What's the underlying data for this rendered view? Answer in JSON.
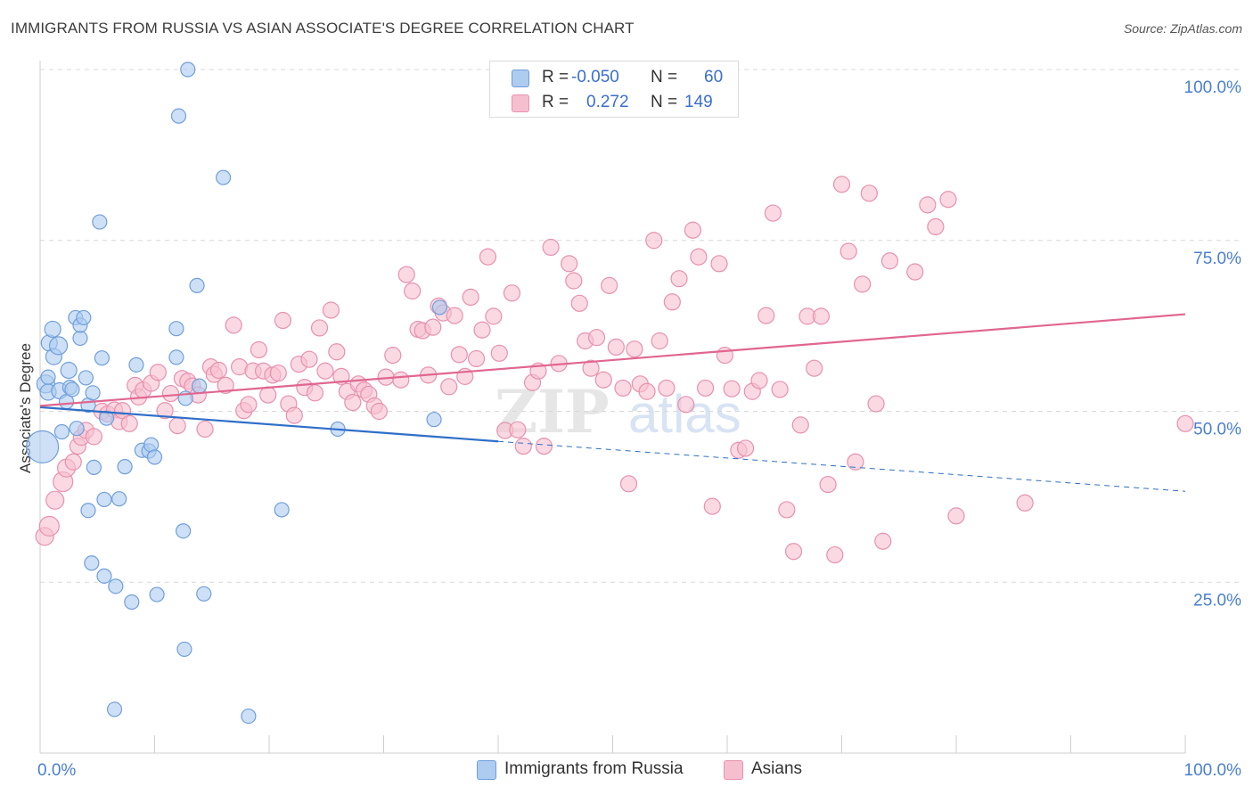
{
  "title": "IMMIGRANTS FROM RUSSIA VS ASIAN ASSOCIATE'S DEGREE CORRELATION CHART",
  "source": "Source: ZipAtlas.com",
  "legend": {
    "rows": [
      {
        "r_label": "R =",
        "r_value": "-0.050",
        "n_label": "N =",
        "n_value": "60"
      },
      {
        "r_label": "R =",
        "r_value": "0.272",
        "n_label": "N =",
        "n_value": "149"
      }
    ]
  },
  "bottom_legend": [
    "Immigrants from Russia",
    "Asians"
  ],
  "colors": {
    "blue_fill": "#aecbf0",
    "blue_stroke": "#6f9fdc",
    "blue_line": "#2f6fc7",
    "pink_fill": "#f6bfd0",
    "pink_stroke": "#e891ae",
    "pink_line": "#e06690",
    "tick_label": "#4a7fd0",
    "grid": "#d8d8d8"
  },
  "chart_data": {
    "type": "scatter",
    "title": "IMMIGRANTS FROM RUSSIA VS ASIAN ASSOCIATE'S DEGREE CORRELATION CHART",
    "xlabel": "",
    "ylabel": "Associate's Degree",
    "xlim": [
      0,
      100
    ],
    "ylim": [
      0,
      100
    ],
    "x_tick_labels": [
      "0.0%",
      "100.0%"
    ],
    "y_tick_labels": [
      "25.0%",
      "50.0%",
      "75.0%",
      "100.0%"
    ],
    "y_ticks": [
      25,
      50,
      75,
      100
    ],
    "grid": "horizontal dashed",
    "watermark": "ZIPatlas",
    "series": [
      {
        "name": "Immigrants from Russia",
        "r": -0.05,
        "n": 60,
        "trend": {
          "x0": 0,
          "y0": 50.6,
          "x1": 40,
          "y1": 45.6,
          "dashed_to": 100,
          "y_end": 38.3
        },
        "points": [
          [
            0.2,
            44.8,
            18
          ],
          [
            0.5,
            54.0,
            10
          ],
          [
            0.7,
            52.8,
            9
          ],
          [
            0.7,
            55.0,
            8
          ],
          [
            0.8,
            60.0,
            9
          ],
          [
            1.1,
            62.0,
            9
          ],
          [
            1.2,
            58.0,
            9
          ],
          [
            1.6,
            59.6,
            10
          ],
          [
            1.7,
            53.0,
            9
          ],
          [
            1.9,
            47.0,
            8
          ],
          [
            2.3,
            51.4,
            8
          ],
          [
            2.5,
            56.0,
            9
          ],
          [
            2.6,
            53.5,
            8
          ],
          [
            2.8,
            53.2,
            8
          ],
          [
            3.1,
            63.7,
            8
          ],
          [
            3.2,
            47.5,
            8
          ],
          [
            3.5,
            60.7,
            8
          ],
          [
            3.5,
            62.6,
            8
          ],
          [
            3.8,
            63.7,
            8
          ],
          [
            4.0,
            54.9,
            8
          ],
          [
            4.2,
            35.5,
            8
          ],
          [
            4.2,
            50.9,
            8
          ],
          [
            4.5,
            27.8,
            8
          ],
          [
            4.6,
            52.7,
            8
          ],
          [
            4.7,
            41.8,
            8
          ],
          [
            5.2,
            77.7,
            8
          ],
          [
            5.4,
            57.8,
            8
          ],
          [
            5.6,
            25.9,
            8
          ],
          [
            5.6,
            37.1,
            8
          ],
          [
            5.8,
            49.0,
            8
          ],
          [
            6.5,
            6.4,
            8
          ],
          [
            6.6,
            24.4,
            8
          ],
          [
            6.9,
            37.2,
            8
          ],
          [
            7.4,
            41.9,
            8
          ],
          [
            8.0,
            22.1,
            8
          ],
          [
            8.4,
            56.8,
            8
          ],
          [
            8.9,
            44.3,
            8
          ],
          [
            9.5,
            44.2,
            8
          ],
          [
            9.7,
            45.1,
            8
          ],
          [
            10.0,
            43.3,
            8
          ],
          [
            10.2,
            23.2,
            8
          ],
          [
            11.9,
            62.1,
            8
          ],
          [
            11.9,
            57.9,
            8
          ],
          [
            12.1,
            93.2,
            8
          ],
          [
            12.5,
            32.5,
            8
          ],
          [
            12.6,
            15.2,
            8
          ],
          [
            12.7,
            51.9,
            8
          ],
          [
            12.9,
            100.0,
            8
          ],
          [
            13.7,
            68.4,
            8
          ],
          [
            13.9,
            53.7,
            8
          ],
          [
            14.3,
            23.3,
            8
          ],
          [
            16.0,
            84.2,
            8
          ],
          [
            18.2,
            5.4,
            8
          ],
          [
            21.1,
            35.6,
            8
          ],
          [
            34.9,
            65.2,
            8
          ],
          [
            34.4,
            48.8,
            8
          ],
          [
            26.0,
            47.4,
            8
          ]
        ]
      },
      {
        "name": "Asians",
        "r": 0.272,
        "n": 149,
        "trend": {
          "x0": 0,
          "y0": 50.8,
          "x1": 100,
          "y1": 64.2
        },
        "points": [
          [
            0.4,
            31.7,
            10
          ],
          [
            0.8,
            33.2,
            11
          ],
          [
            1.3,
            37.0,
            10
          ],
          [
            2.0,
            39.7,
            11
          ],
          [
            2.3,
            41.7,
            10
          ],
          [
            2.9,
            42.6,
            9
          ],
          [
            3.3,
            44.9,
            9
          ],
          [
            3.6,
            46.2,
            9
          ],
          [
            4.0,
            47.2,
            9
          ],
          [
            4.7,
            46.3,
            9
          ],
          [
            5.4,
            50.0,
            9
          ],
          [
            5.9,
            49.6,
            9
          ],
          [
            6.5,
            50.2,
            9
          ],
          [
            6.9,
            48.5,
            9
          ],
          [
            7.2,
            50.1,
            9
          ],
          [
            7.8,
            48.2,
            9
          ],
          [
            8.3,
            53.8,
            9
          ],
          [
            8.6,
            52.1,
            9
          ],
          [
            9.0,
            53.1,
            9
          ],
          [
            9.7,
            54.1,
            9
          ],
          [
            10.3,
            55.7,
            9
          ],
          [
            10.9,
            50.1,
            9
          ],
          [
            11.4,
            52.6,
            9
          ],
          [
            12.0,
            47.9,
            9
          ],
          [
            12.4,
            54.8,
            9
          ],
          [
            12.9,
            54.4,
            9
          ],
          [
            13.3,
            53.7,
            9
          ],
          [
            13.8,
            52.4,
            9
          ],
          [
            14.4,
            47.4,
            9
          ],
          [
            14.9,
            56.5,
            9
          ],
          [
            15.2,
            55.4,
            9
          ],
          [
            15.6,
            56.0,
            9
          ],
          [
            16.2,
            53.8,
            9
          ],
          [
            16.9,
            62.6,
            9
          ],
          [
            17.4,
            56.5,
            9
          ],
          [
            17.8,
            50.1,
            9
          ],
          [
            18.2,
            51.0,
            9
          ],
          [
            18.6,
            55.9,
            9
          ],
          [
            19.1,
            59.0,
            9
          ],
          [
            19.5,
            55.9,
            9
          ],
          [
            19.9,
            52.4,
            9
          ],
          [
            20.3,
            55.3,
            9
          ],
          [
            20.8,
            55.6,
            9
          ],
          [
            21.2,
            63.3,
            9
          ],
          [
            21.7,
            51.1,
            9
          ],
          [
            22.2,
            49.4,
            9
          ],
          [
            22.6,
            56.9,
            9
          ],
          [
            23.1,
            53.5,
            9
          ],
          [
            23.5,
            57.6,
            9
          ],
          [
            24.0,
            52.7,
            9
          ],
          [
            24.4,
            62.2,
            9
          ],
          [
            24.9,
            55.9,
            9
          ],
          [
            25.4,
            64.8,
            9
          ],
          [
            25.9,
            58.7,
            9
          ],
          [
            26.3,
            55.1,
            9
          ],
          [
            26.8,
            52.9,
            9
          ],
          [
            27.3,
            51.3,
            9
          ],
          [
            27.8,
            54.0,
            9
          ],
          [
            28.3,
            53.1,
            9
          ],
          [
            28.7,
            52.5,
            9
          ],
          [
            29.2,
            50.8,
            9
          ],
          [
            29.6,
            50.0,
            9
          ],
          [
            30.2,
            55.0,
            9
          ],
          [
            30.8,
            58.2,
            9
          ],
          [
            31.5,
            54.6,
            9
          ],
          [
            32.0,
            70.0,
            9
          ],
          [
            32.5,
            67.6,
            9
          ],
          [
            33.0,
            62.0,
            9
          ],
          [
            33.4,
            61.8,
            9
          ],
          [
            33.9,
            55.3,
            9
          ],
          [
            34.3,
            62.3,
            9
          ],
          [
            34.8,
            65.4,
            9
          ],
          [
            35.2,
            64.4,
            9
          ],
          [
            35.7,
            53.6,
            9
          ],
          [
            36.2,
            64.0,
            9
          ],
          [
            36.6,
            58.3,
            9
          ],
          [
            37.1,
            55.1,
            9
          ],
          [
            37.6,
            66.7,
            9
          ],
          [
            38.1,
            57.7,
            9
          ],
          [
            38.6,
            61.9,
            9
          ],
          [
            39.1,
            72.6,
            9
          ],
          [
            39.6,
            63.9,
            9
          ],
          [
            40.1,
            58.5,
            9
          ],
          [
            40.6,
            47.2,
            9
          ],
          [
            41.2,
            67.3,
            9
          ],
          [
            41.7,
            47.3,
            9
          ],
          [
            42.2,
            44.9,
            9
          ],
          [
            43.0,
            54.2,
            9
          ],
          [
            43.5,
            55.9,
            9
          ],
          [
            44.0,
            44.9,
            9
          ],
          [
            44.6,
            74.0,
            9
          ],
          [
            45.3,
            57.0,
            9
          ],
          [
            46.2,
            71.6,
            9
          ],
          [
            46.6,
            69.1,
            9
          ],
          [
            47.1,
            65.8,
            9
          ],
          [
            47.6,
            60.3,
            9
          ],
          [
            48.1,
            56.3,
            9
          ],
          [
            48.6,
            60.8,
            9
          ],
          [
            49.2,
            54.6,
            9
          ],
          [
            49.7,
            68.4,
            9
          ],
          [
            50.3,
            59.4,
            9
          ],
          [
            50.9,
            53.4,
            9
          ],
          [
            51.4,
            39.4,
            9
          ],
          [
            51.9,
            59.1,
            9
          ],
          [
            52.4,
            54.0,
            9
          ],
          [
            53.0,
            52.9,
            9
          ],
          [
            53.6,
            75.0,
            9
          ],
          [
            54.1,
            60.3,
            9
          ],
          [
            54.7,
            53.4,
            9
          ],
          [
            55.2,
            66.0,
            9
          ],
          [
            55.8,
            69.4,
            9
          ],
          [
            56.4,
            51.0,
            9
          ],
          [
            57.0,
            76.5,
            9
          ],
          [
            57.5,
            72.6,
            9
          ],
          [
            58.1,
            53.4,
            9
          ],
          [
            58.7,
            36.1,
            9
          ],
          [
            59.3,
            71.6,
            9
          ],
          [
            59.8,
            58.2,
            9
          ],
          [
            60.4,
            53.3,
            9
          ],
          [
            61.0,
            44.3,
            9
          ],
          [
            61.6,
            44.6,
            9
          ],
          [
            62.2,
            52.9,
            9
          ],
          [
            62.8,
            54.5,
            9
          ],
          [
            63.4,
            64.0,
            9
          ],
          [
            64.0,
            79.0,
            9
          ],
          [
            64.6,
            53.2,
            9
          ],
          [
            65.2,
            35.6,
            9
          ],
          [
            65.8,
            29.5,
            9
          ],
          [
            66.4,
            48.0,
            9
          ],
          [
            67.0,
            63.9,
            9
          ],
          [
            67.6,
            56.3,
            9
          ],
          [
            68.2,
            63.9,
            9
          ],
          [
            68.8,
            39.3,
            9
          ],
          [
            69.4,
            29.0,
            9
          ],
          [
            70.0,
            83.2,
            9
          ],
          [
            70.6,
            73.4,
            9
          ],
          [
            71.2,
            42.6,
            9
          ],
          [
            71.8,
            68.6,
            9
          ],
          [
            72.4,
            81.9,
            9
          ],
          [
            73.0,
            51.1,
            9
          ],
          [
            73.6,
            31.0,
            9
          ],
          [
            74.2,
            72.0,
            9
          ],
          [
            76.4,
            70.4,
            9
          ],
          [
            77.5,
            80.2,
            9
          ],
          [
            78.2,
            77.0,
            9
          ],
          [
            79.3,
            81.0,
            9
          ],
          [
            80.0,
            34.7,
            9
          ],
          [
            86.0,
            36.6,
            9
          ],
          [
            100.0,
            48.2,
            9
          ]
        ]
      }
    ]
  }
}
